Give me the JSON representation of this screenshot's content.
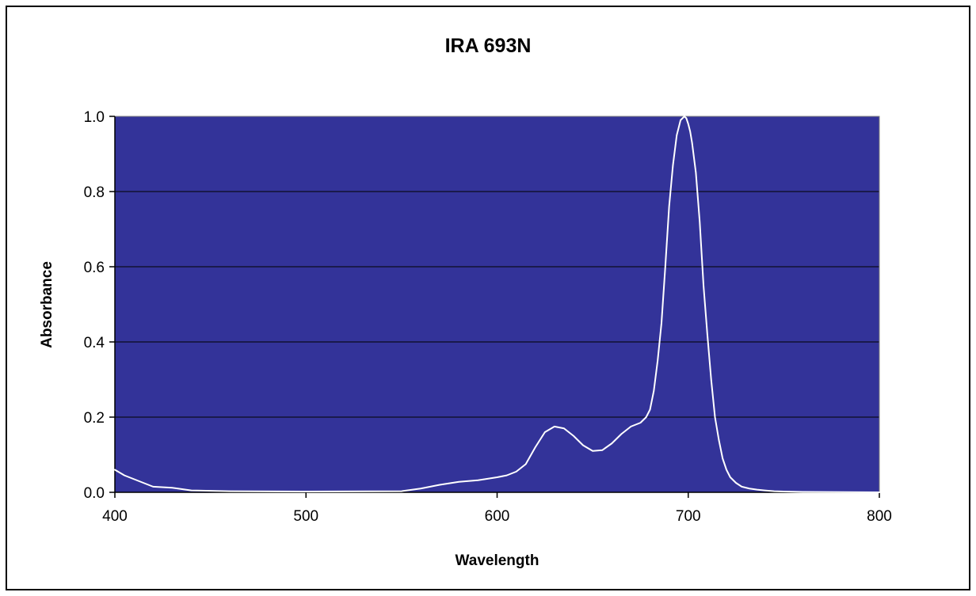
{
  "chart_data": {
    "type": "line",
    "title": "IRA 693N",
    "xlabel": "Wavelength",
    "ylabel": "Absorbance",
    "xlim": [
      400,
      800
    ],
    "ylim": [
      0,
      1
    ],
    "x_ticks": [
      400,
      500,
      600,
      700,
      800
    ],
    "y_ticks": [
      0,
      0.2,
      0.4,
      0.6,
      0.8,
      1
    ],
    "x_tick_labels": [
      "400",
      "500",
      "600",
      "700",
      "800"
    ],
    "y_tick_labels": [
      "0.0",
      "0.2",
      "0.4",
      "0.6",
      "0.8",
      "1.0"
    ],
    "grid": "horizontal",
    "legend": "none",
    "colors": {
      "plot_background": "#333399",
      "line": "#ffffff",
      "gridline": "#000000"
    },
    "series": [
      {
        "x": [
          400,
          405,
          410,
          415,
          420,
          430,
          440,
          460,
          500,
          550,
          560,
          570,
          580,
          590,
          600,
          605,
          610,
          615,
          620,
          625,
          630,
          635,
          640,
          645,
          650,
          655,
          660,
          665,
          670,
          675,
          678,
          680,
          682,
          684,
          686,
          688,
          690,
          692,
          694,
          696,
          698,
          699,
          700,
          701,
          702,
          704,
          706,
          708,
          710,
          712,
          714,
          716,
          718,
          720,
          722,
          725,
          728,
          732,
          736,
          740,
          745,
          750,
          760,
          800
        ],
        "y": [
          0.06,
          0.045,
          0.035,
          0.025,
          0.015,
          0.012,
          0.005,
          0.003,
          0.002,
          0.003,
          0.01,
          0.02,
          0.028,
          0.032,
          0.04,
          0.045,
          0.055,
          0.075,
          0.12,
          0.16,
          0.175,
          0.17,
          0.15,
          0.125,
          0.11,
          0.112,
          0.13,
          0.155,
          0.175,
          0.185,
          0.2,
          0.22,
          0.27,
          0.35,
          0.45,
          0.6,
          0.76,
          0.87,
          0.95,
          0.99,
          1.0,
          0.995,
          0.98,
          0.96,
          0.93,
          0.85,
          0.72,
          0.55,
          0.42,
          0.3,
          0.2,
          0.14,
          0.09,
          0.06,
          0.04,
          0.025,
          0.015,
          0.01,
          0.007,
          0.005,
          0.003,
          0.002,
          0.001,
          0.0
        ]
      }
    ]
  }
}
